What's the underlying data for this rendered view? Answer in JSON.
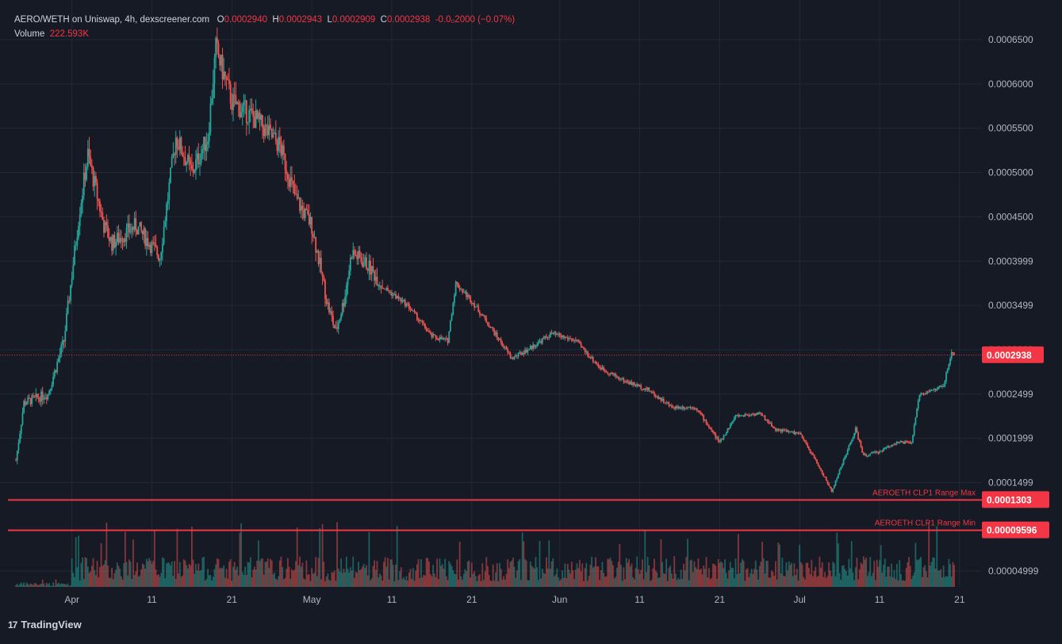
{
  "header": {
    "symbol": "AERO/WETH on Uniswap, 4h, dexscreener.com",
    "o_label": "O",
    "o_value": "0.0002940",
    "h_label": "H",
    "h_value": "0.0002943",
    "l_label": "L",
    "l_value": "0.0002909",
    "c_label": "C",
    "c_value": "0.0002938",
    "change": "-0.0₀2000 (−0.07%)",
    "volume_label": "Volume",
    "volume_value": "222.593K"
  },
  "brand": {
    "logo": "17",
    "name": "TradingView"
  },
  "colors": {
    "up": "#26a69a",
    "down": "#ef5350",
    "accent": "#f23645",
    "background": "#161a25",
    "grid": "#232836"
  },
  "chart_data": {
    "type": "candlestick",
    "interval": "4h",
    "y_ticks": [
      "0.0006500",
      "0.0006000",
      "0.0005500",
      "0.0005000",
      "0.0004500",
      "0.0003999",
      "0.0003499",
      "0.0002999",
      "0.0002499",
      "0.0001999",
      "0.0001499",
      "0.00004999"
    ],
    "x_ticks": [
      "Apr",
      "11",
      "21",
      "May",
      "11",
      "21",
      "Jun",
      "11",
      "21",
      "Jul",
      "11",
      "21"
    ],
    "price_knots": [
      [
        "Mar 25",
        0.000175
      ],
      [
        "Mar 26",
        0.00024
      ],
      [
        "Mar 29",
        0.00025
      ],
      [
        "Mar 31",
        0.00031
      ],
      [
        "Apr 2",
        0.00046
      ],
      [
        "Apr 3",
        0.00052
      ],
      [
        "Apr 5",
        0.00044
      ],
      [
        "Apr 6",
        0.00042
      ],
      [
        "Apr 9",
        0.00044
      ],
      [
        "Apr 12",
        0.000405
      ],
      [
        "Apr 14",
        0.00054
      ],
      [
        "Apr 16",
        0.0005
      ],
      [
        "Apr 18",
        0.00054
      ],
      [
        "Apr 19",
        0.00064
      ],
      [
        "Apr 21",
        0.00058
      ],
      [
        "Apr 24",
        0.00056
      ],
      [
        "Apr 27",
        0.00053
      ],
      [
        "Apr 29",
        0.00047
      ],
      [
        "May 1",
        0.00044
      ],
      [
        "May 3",
        0.00035
      ],
      [
        "May 4",
        0.00032
      ],
      [
        "May 5",
        0.000355
      ],
      [
        "May 6",
        0.00041
      ],
      [
        "May 8",
        0.000395
      ],
      [
        "May 10",
        0.00037
      ],
      [
        "May 13",
        0.00035
      ],
      [
        "May 16",
        0.000315
      ],
      [
        "May 18",
        0.00031
      ],
      [
        "May 19",
        0.000375
      ],
      [
        "May 21",
        0.000355
      ],
      [
        "May 23",
        0.00033
      ],
      [
        "May 26",
        0.00029
      ],
      [
        "May 28",
        0.0003
      ],
      [
        "May 31",
        0.000318
      ],
      [
        "Jun 3",
        0.00031
      ],
      [
        "Jun 6",
        0.00028
      ],
      [
        "Jun 9",
        0.000265
      ],
      [
        "Jun 12",
        0.000255
      ],
      [
        "Jun 15",
        0.000235
      ],
      [
        "Jun 18",
        0.000235
      ],
      [
        "Jun 21",
        0.000195
      ],
      [
        "Jun 23",
        0.000225
      ],
      [
        "Jun 26",
        0.000228
      ],
      [
        "Jun 28",
        0.00021
      ],
      [
        "Jul 1",
        0.000205
      ],
      [
        "Jul 3",
        0.000175
      ],
      [
        "Jul 5",
        0.00014
      ],
      [
        "Jul 8",
        0.00021
      ],
      [
        "Jul 9",
        0.00018
      ],
      [
        "Jul 11",
        0.000185
      ],
      [
        "Jul 13",
        0.000195
      ],
      [
        "Jul 15",
        0.000195
      ],
      [
        "Jul 16",
        0.00025
      ],
      [
        "Jul 18",
        0.000255
      ],
      [
        "Jul 19",
        0.00026
      ],
      [
        "Jul 20",
        0.000295
      ]
    ],
    "last_price": {
      "value": 0.0002938,
      "label": "0.0002938"
    },
    "lines": [
      {
        "name": "AEROETH CLP1 Range Max",
        "value": 0.0001303,
        "label": "0.0001303"
      },
      {
        "name": "AEROETH CLP1 Range Min",
        "value": 9.596e-05,
        "label": "0.00009596"
      }
    ],
    "volume": {
      "last": "222.593K"
    },
    "ylim": [
      2e-05,
      0.00067
    ],
    "xlim": [
      "Mar 24",
      "Jul 23"
    ]
  }
}
